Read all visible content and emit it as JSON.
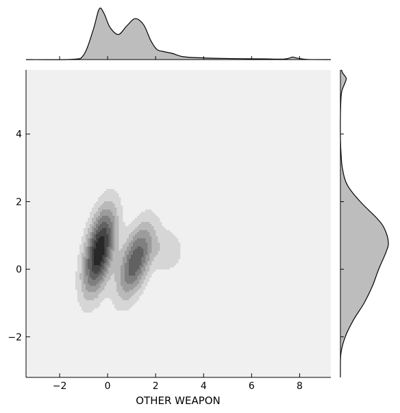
{
  "chart_data": {
    "type": "jointplot-kde",
    "xlabel": "OTHER WEAPON",
    "ylabel": "",
    "xlim": [
      -3.4,
      9.3
    ],
    "ylim": [
      -3.2,
      5.9
    ],
    "xticks": [
      -2,
      0,
      2,
      4,
      6,
      8
    ],
    "yticks": [
      -2,
      0,
      2,
      4
    ],
    "xtick_labels": [
      "−2",
      "0",
      "2",
      "4",
      "6",
      "8"
    ],
    "ytick_labels": [
      "−2",
      "0",
      "2",
      "4"
    ],
    "grid": false,
    "colors": {
      "plot_background": "#f0f0f0",
      "fill": "#bdbdbd",
      "line": "#000000",
      "levels": [
        "#d6d6d6",
        "#b9b9b9",
        "#9c9c9c",
        "#7f7f7f",
        "#616161",
        "#454545",
        "#282828"
      ]
    },
    "joint_components": [
      {
        "mx": -0.35,
        "my": 0.55,
        "sx": 0.45,
        "sy": 0.85,
        "rho": 0.5,
        "w": 0.5
      },
      {
        "mx": 1.15,
        "my": 0.25,
        "sx": 0.5,
        "sy": 0.75,
        "rho": 0.55,
        "w": 0.36
      },
      {
        "mx": 2.5,
        "my": 0.55,
        "sx": 0.45,
        "sy": 0.45,
        "rho": 0.0,
        "w": 0.1
      },
      {
        "mx": 7.7,
        "my": 5.65,
        "sx": 0.16,
        "sy": 0.14,
        "rho": 0.0,
        "w": 0.02
      }
    ],
    "marginal_x": {
      "x": [
        -3.4,
        -1.5,
        -1.0,
        -0.6,
        -0.35,
        -0.15,
        0.1,
        0.45,
        0.8,
        1.15,
        1.5,
        1.8,
        2.05,
        2.3,
        2.7,
        3.1,
        3.6,
        4.5,
        5.5,
        6.5,
        7.3,
        7.55,
        7.7,
        7.9,
        8.3,
        9.3
      ],
      "density": [
        0.0,
        0.005,
        0.09,
        0.58,
        0.99,
        0.9,
        0.63,
        0.49,
        0.66,
        0.8,
        0.68,
        0.37,
        0.2,
        0.16,
        0.12,
        0.06,
        0.04,
        0.025,
        0.017,
        0.013,
        0.01,
        0.025,
        0.05,
        0.03,
        0.004,
        0.0
      ]
    },
    "marginal_y": {
      "y": [
        -3.2,
        -2.5,
        -2.0,
        -1.5,
        -1.0,
        -0.5,
        0.0,
        0.5,
        0.8,
        1.2,
        1.5,
        2.0,
        2.5,
        3.0,
        3.5,
        4.0,
        4.5,
        5.2,
        5.5,
        5.65,
        5.8,
        5.9
      ],
      "density": [
        0.0,
        0.01,
        0.1,
        0.27,
        0.49,
        0.66,
        0.79,
        0.94,
        0.99,
        0.91,
        0.76,
        0.41,
        0.14,
        0.04,
        0.01,
        0.0,
        0.0,
        0.02,
        0.09,
        0.12,
        0.05,
        0.02
      ]
    }
  }
}
